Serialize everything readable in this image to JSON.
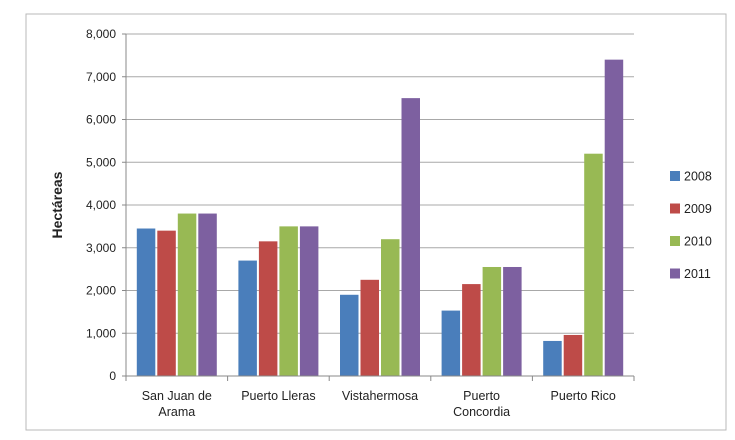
{
  "chart_data": {
    "type": "bar",
    "title": "",
    "xlabel": "",
    "ylabel": "Hectáreas",
    "ylim": [
      0,
      8000
    ],
    "yticks": [
      0,
      1000,
      2000,
      3000,
      4000,
      5000,
      6000,
      7000,
      8000
    ],
    "ytick_labels": [
      "0",
      "1,000",
      "2,000",
      "3,000",
      "4,000",
      "5,000",
      "6,000",
      "7,000",
      "8,000"
    ],
    "grid": true,
    "legend_position": "right",
    "categories": [
      [
        "San Juan de",
        "Arama"
      ],
      [
        "Puerto Lleras"
      ],
      [
        "Vistahermosa"
      ],
      [
        "Puerto",
        "Concordia"
      ],
      [
        "Puerto Rico"
      ]
    ],
    "series": [
      {
        "name": "2008",
        "color": "#4a7ebb",
        "values": [
          3450,
          2700,
          1900,
          1530,
          820
        ]
      },
      {
        "name": "2009",
        "color": "#be4b48",
        "values": [
          3400,
          3150,
          2250,
          2150,
          960
        ]
      },
      {
        "name": "2010",
        "color": "#98b954",
        "values": [
          3800,
          3500,
          3200,
          2550,
          5200
        ]
      },
      {
        "name": "2011",
        "color": "#7d60a0",
        "values": [
          3800,
          3500,
          6500,
          2550,
          7400
        ]
      }
    ]
  }
}
